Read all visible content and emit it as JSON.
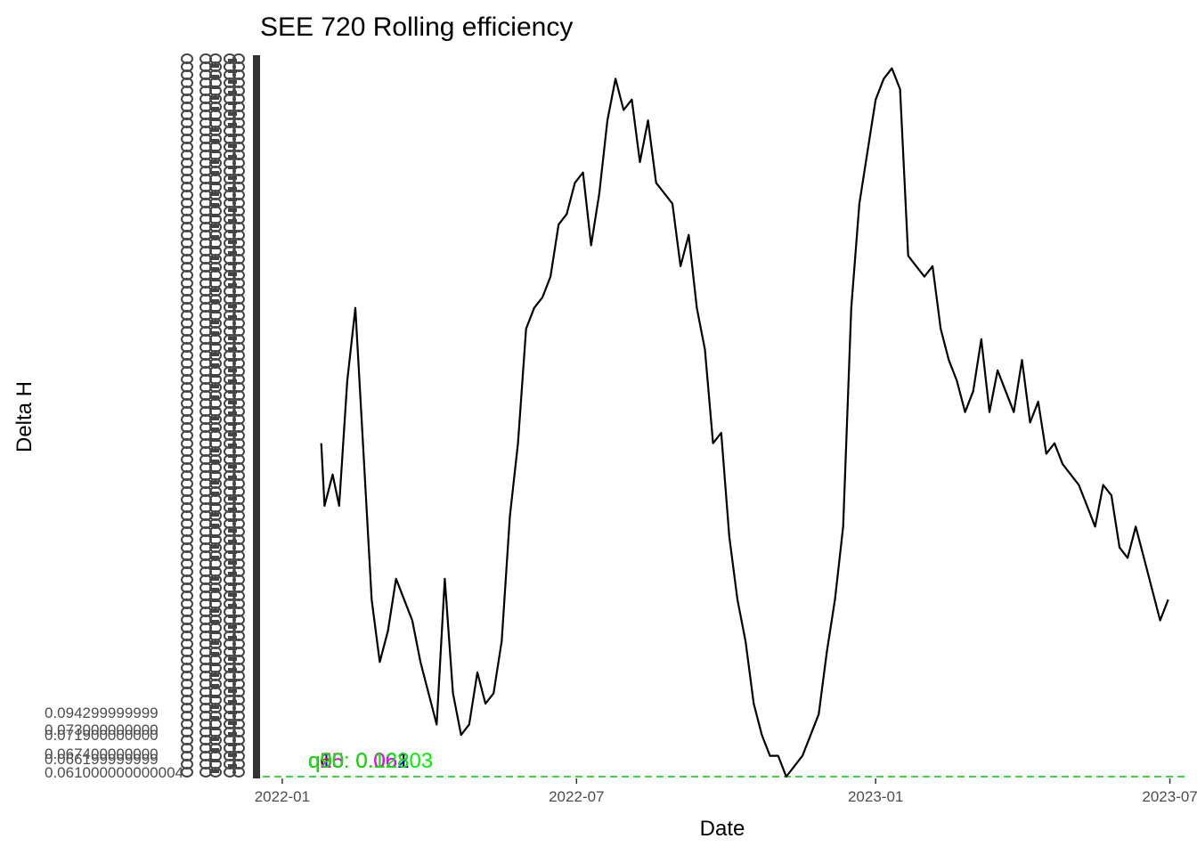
{
  "chart_data": {
    "type": "line",
    "title": "SEE 720 Rolling efficiency",
    "xlabel": "Date",
    "ylabel": "Delta H",
    "x_ticks": [
      "2022-01",
      "2022-07",
      "2023-01",
      "2023-07"
    ],
    "x_range": [
      "2021-12-20",
      "2023-07-10"
    ],
    "ylim": [
      0.061,
      0.13
    ],
    "y_ticks": [
      "0.094299999999",
      "0.073000000000",
      "0.071900000000",
      "0.067400000000",
      "0.066199999999",
      "0.061000000000004"
    ],
    "grid": false,
    "legend": "none",
    "series": [
      {
        "color": "#000000",
        "x": [
          "2022-01-25",
          "2022-01-27",
          "2022-02-01",
          "2022-02-05",
          "2022-02-10",
          "2022-02-15",
          "2022-02-20",
          "2022-02-25",
          "2022-03-02",
          "2022-03-07",
          "2022-03-12",
          "2022-03-17",
          "2022-03-22",
          "2022-03-27",
          "2022-04-01",
          "2022-04-06",
          "2022-04-11",
          "2022-04-16",
          "2022-04-21",
          "2022-04-26",
          "2022-05-01",
          "2022-05-06",
          "2022-05-11",
          "2022-05-16",
          "2022-05-21",
          "2022-05-26",
          "2022-05-31",
          "2022-06-05",
          "2022-06-10",
          "2022-06-15",
          "2022-06-20",
          "2022-06-25",
          "2022-06-30",
          "2022-07-05",
          "2022-07-10",
          "2022-07-15",
          "2022-07-20",
          "2022-07-25",
          "2022-07-30",
          "2022-08-04",
          "2022-08-09",
          "2022-08-14",
          "2022-08-19",
          "2022-08-24",
          "2022-08-29",
          "2022-09-03",
          "2022-09-08",
          "2022-09-13",
          "2022-09-18",
          "2022-09-23",
          "2022-09-28",
          "2022-10-03",
          "2022-10-08",
          "2022-10-13",
          "2022-10-18",
          "2022-10-23",
          "2022-10-28",
          "2022-11-02",
          "2022-11-07",
          "2022-11-12",
          "2022-11-17",
          "2022-11-22",
          "2022-11-27",
          "2022-12-02",
          "2022-12-07",
          "2022-12-12",
          "2022-12-17",
          "2022-12-22",
          "2022-12-27",
          "2023-01-01",
          "2023-01-06",
          "2023-01-11",
          "2023-01-16",
          "2023-01-21",
          "2023-01-26",
          "2023-01-31",
          "2023-02-05",
          "2023-02-10",
          "2023-02-15",
          "2023-02-20",
          "2023-02-25",
          "2023-03-02",
          "2023-03-07",
          "2023-03-12",
          "2023-03-17",
          "2023-03-22",
          "2023-03-27",
          "2023-04-01",
          "2023-04-06",
          "2023-04-11",
          "2023-04-16",
          "2023-04-21",
          "2023-04-26",
          "2023-05-01",
          "2023-05-06",
          "2023-05-11",
          "2023-05-16",
          "2023-05-21",
          "2023-05-26",
          "2023-05-31",
          "2023-06-05",
          "2023-06-10",
          "2023-06-15",
          "2023-06-20",
          "2023-06-25",
          "2023-06-30"
        ],
        "y": [
          0.093,
          0.087,
          0.09,
          0.087,
          0.099,
          0.106,
          0.092,
          0.078,
          0.072,
          0.075,
          0.08,
          0.078,
          0.076,
          0.072,
          0.069,
          0.066,
          0.08,
          0.069,
          0.065,
          0.066,
          0.071,
          0.068,
          0.069,
          0.074,
          0.086,
          0.093,
          0.104,
          0.106,
          0.107,
          0.109,
          0.114,
          0.115,
          0.118,
          0.119,
          0.112,
          0.117,
          0.124,
          0.128,
          0.125,
          0.126,
          0.12,
          0.124,
          0.118,
          0.117,
          0.116,
          0.11,
          0.113,
          0.106,
          0.102,
          0.093,
          0.094,
          0.084,
          0.078,
          0.074,
          0.068,
          0.065,
          0.063,
          0.063,
          0.061,
          0.062,
          0.063,
          0.065,
          0.067,
          0.073,
          0.078,
          0.085,
          0.106,
          0.116,
          0.121,
          0.126,
          0.128,
          0.129,
          0.127,
          0.111,
          0.11,
          0.109,
          0.11,
          0.104,
          0.101,
          0.099,
          0.096,
          0.098,
          0.103,
          0.096,
          0.1,
          0.098,
          0.096,
          0.101,
          0.095,
          0.097,
          0.092,
          0.093,
          0.091,
          0.09,
          0.089,
          0.087,
          0.085,
          0.089,
          0.088,
          0.083,
          0.082,
          0.085,
          0.082,
          0.079,
          0.076,
          0.078
        ]
      }
    ],
    "annotations": [
      {
        "text": "q05: 0.061",
        "color": "#000000"
      },
      {
        "text": "q10: 0.062",
        "color": "#0000ff"
      },
      {
        "text": "q25: 0.068",
        "color": "#ff00ff"
      },
      {
        "text": "q50: 0.1",
        "color": "#ff0000"
      },
      {
        "text": "q90: 0.12803",
        "color": "#00ee00"
      }
    ],
    "hline": {
      "y": 0.061,
      "color": "#00cc00",
      "style": "dashed"
    }
  }
}
